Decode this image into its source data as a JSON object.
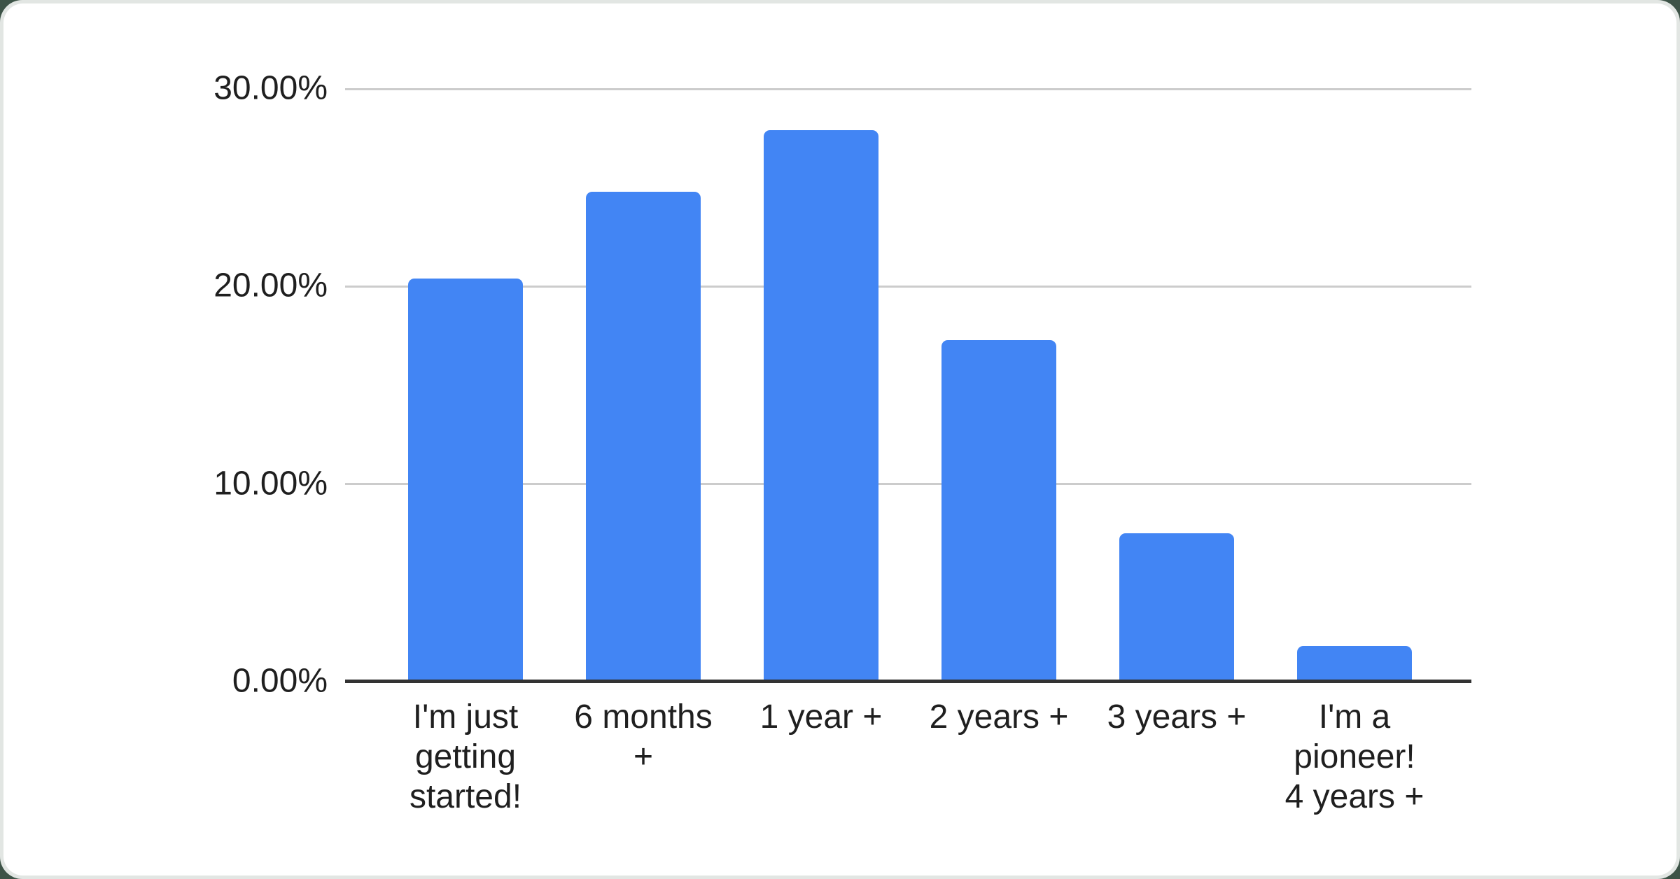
{
  "page": {
    "background_hex": "#3d5347",
    "frame_hex": "#e2e6e3",
    "card_hex": "#ffffff"
  },
  "chart_data": {
    "type": "bar",
    "title": "",
    "xlabel": "",
    "ylabel": "",
    "categories": [
      "I'm just\ngetting\nstarted!",
      "6 months\n+",
      "1 year +",
      "2 years +",
      "3 years +",
      "I'm a\npioneer!\n4 years +"
    ],
    "values": [
      20.4,
      24.8,
      27.9,
      17.3,
      7.5,
      1.8
    ],
    "value_unit": "%",
    "ylim": [
      0,
      30
    ],
    "y_tick_values": [
      0,
      10,
      20,
      30
    ],
    "y_tick_labels": [
      "0.00%",
      "10.00%",
      "20.00%",
      "30.00%"
    ],
    "grid": true,
    "legend": "none",
    "bar_color_hex": "#4285F4",
    "gridline_color_hex": "#cccccc",
    "axis_line_color_hex": "#333333",
    "label_color_hex": "#1f1f1f"
  }
}
